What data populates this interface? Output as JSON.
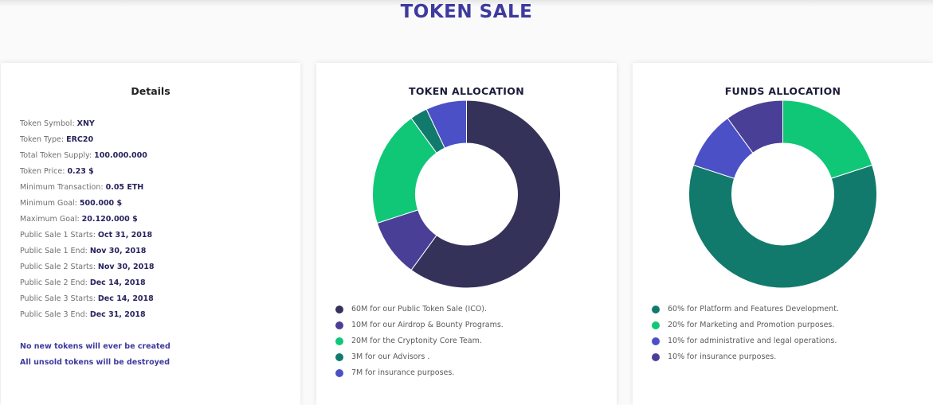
{
  "page": {
    "title": "TOKEN SALE"
  },
  "details": {
    "title": "Details",
    "rows": [
      {
        "label": "Token Symbol:",
        "value": "XNY"
      },
      {
        "label": "Token Type:",
        "value": "ERC20"
      },
      {
        "label": "Total Token Supply:",
        "value": "100.000.000"
      },
      {
        "label": "Token Price:",
        "value": "0.23 $"
      },
      {
        "label": "Minimum Transaction:",
        "value": "0.05 ETH"
      },
      {
        "label": "Minimum Goal:",
        "value": "500.000 $"
      },
      {
        "label": "Maximum Goal:",
        "value": "20.120.000 $"
      },
      {
        "label": "Public Sale 1 Starts:",
        "value": "Oct 31, 2018"
      },
      {
        "label": "Public Sale 1 End:",
        "value": "Nov 30, 2018"
      },
      {
        "label": "Public Sale 2 Starts:",
        "value": "Nov 30, 2018"
      },
      {
        "label": "Public Sale 2 End:",
        "value": "Dec 14, 2018"
      },
      {
        "label": "Public Sale 3 Starts:",
        "value": "Dec 14, 2018"
      },
      {
        "label": "Public Sale 3 End:",
        "value": "Dec 31, 2018"
      }
    ],
    "notes": [
      "No new tokens will ever be created",
      "All unsold tokens will be destroyed"
    ]
  },
  "chart_data": [
    {
      "type": "pie",
      "title": "TOKEN ALLOCATION",
      "categories": [
        "60M for our Public Token Sale (ICO).",
        "10M for our Airdrop & Bounty Programs.",
        "20M for the Cryptonity Core Team.",
        "3M for our Advisors .",
        "7M for insurance purposes."
      ],
      "values": [
        60,
        10,
        20,
        3,
        7
      ],
      "colors": [
        "#35325a",
        "#4a3f97",
        "#10c777",
        "#127a6d",
        "#4b50c7"
      ],
      "start_angle_deg": 0,
      "legend_placement": "bottom"
    },
    {
      "type": "pie",
      "title": "FUNDS ALLOCATION",
      "categories": [
        "60% for Platform and Features Development.",
        "20% for Marketing and Promotion purposes.",
        "10% for administrative and legal operations.",
        "10% for insurance purposes."
      ],
      "values": [
        60,
        20,
        10,
        10
      ],
      "colors": [
        "#127a6d",
        "#10c777",
        "#4b50c7",
        "#4a3f97"
      ],
      "draw_order": [
        1,
        0,
        2,
        3
      ],
      "start_angle_deg": 0,
      "legend_placement": "bottom"
    }
  ]
}
